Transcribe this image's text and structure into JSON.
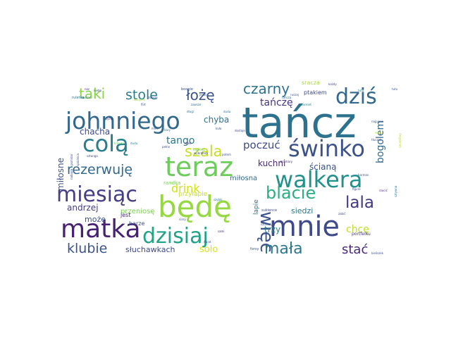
{
  "chart_data": {
    "type": "wordcloud",
    "colormap": "viridis",
    "background": "#ffffff",
    "title": "",
    "words": [
      {
        "text": "tańcz",
        "weight": 1.0,
        "color": "#2c728e"
      },
      {
        "text": "johnniego",
        "weight": 0.62,
        "color": "#31688e"
      },
      {
        "text": "mnie",
        "weight": 0.58,
        "color": "#3e4a89"
      },
      {
        "text": "matka",
        "weight": 0.55,
        "color": "#482173"
      },
      {
        "text": "będę",
        "weight": 0.55,
        "color": "#95d840"
      },
      {
        "text": "teraz",
        "weight": 0.5,
        "color": "#6ccd5a"
      },
      {
        "text": "walkera",
        "weight": 0.5,
        "color": "#21918c"
      },
      {
        "text": "świnko",
        "weight": 0.48,
        "color": "#3b528b"
      },
      {
        "text": "colą",
        "weight": 0.47,
        "color": "#287d8e"
      },
      {
        "text": "miesiąc",
        "weight": 0.45,
        "color": "#433e85"
      },
      {
        "text": "dziś",
        "weight": 0.42,
        "color": "#31688e"
      },
      {
        "text": "dzisiaj",
        "weight": 0.42,
        "color": "#20a386"
      },
      {
        "text": "więc",
        "weight": 0.38,
        "color": "#3b528b"
      },
      {
        "text": "blacie",
        "weight": 0.36,
        "color": "#29af7f"
      },
      {
        "text": "lala",
        "weight": 0.34,
        "color": "#453781"
      },
      {
        "text": "mała",
        "weight": 0.32,
        "color": "#2a788e"
      },
      {
        "text": "szala",
        "weight": 0.3,
        "color": "#c2df23"
      },
      {
        "text": "taki",
        "weight": 0.3,
        "color": "#86d549"
      },
      {
        "text": "łożę",
        "weight": 0.28,
        "color": "#3b528b"
      },
      {
        "text": "czarny",
        "weight": 0.28,
        "color": "#2c728e"
      },
      {
        "text": "stole",
        "weight": 0.26,
        "color": "#287d8e"
      },
      {
        "text": "rezerwuję",
        "weight": 0.26,
        "color": "#31688e"
      },
      {
        "text": "klubie",
        "weight": 0.26,
        "color": "#3b528b"
      },
      {
        "text": "stać",
        "weight": 0.26,
        "color": "#482878"
      },
      {
        "text": "drink",
        "weight": 0.22,
        "color": "#d0e11c"
      },
      {
        "text": "poczuć",
        "weight": 0.22,
        "color": "#3e4a89"
      },
      {
        "text": "bogolem",
        "weight": 0.2,
        "color": "#31688e"
      },
      {
        "text": "tańczę",
        "weight": 0.2,
        "color": "#463480"
      },
      {
        "text": "tango",
        "weight": 0.18,
        "color": "#2a788e"
      },
      {
        "text": "chcę",
        "weight": 0.18,
        "color": "#bddf26"
      },
      {
        "text": "solo",
        "weight": 0.18,
        "color": "#d8e219"
      },
      {
        "text": "miłosne",
        "weight": 0.16,
        "color": "#3b528b"
      },
      {
        "text": "chyba",
        "weight": 0.16,
        "color": "#2c728e"
      },
      {
        "text": "chacha",
        "weight": 0.15,
        "color": "#3e4a89"
      },
      {
        "text": "andrzej",
        "weight": 0.15,
        "color": "#433e85"
      },
      {
        "text": "kuchni",
        "weight": 0.15,
        "color": "#482878"
      },
      {
        "text": "ścianą",
        "weight": 0.15,
        "color": "#3b528b"
      },
      {
        "text": "trzy",
        "weight": 0.15,
        "color": "#26828e"
      },
      {
        "text": "siedzi",
        "weight": 0.14,
        "color": "#2a788e"
      },
      {
        "text": "słuchawkach",
        "weight": 0.14,
        "color": "#3e4a89"
      },
      {
        "text": "może",
        "weight": 0.13,
        "color": "#3b528b"
      },
      {
        "text": "przeniosę",
        "weight": 0.12,
        "color": "#7ad151"
      },
      {
        "text": "przyłapie",
        "weight": 0.12,
        "color": "#c8e020"
      },
      {
        "text": "miłosna",
        "weight": 0.12,
        "color": "#31688e"
      },
      {
        "text": "lapie",
        "weight": 0.11,
        "color": "#2c728e"
      },
      {
        "text": "randka",
        "weight": 0.09,
        "color": "#7ad151"
      },
      {
        "text": "ptakiem",
        "weight": 0.1,
        "color": "#3e4a89"
      },
      {
        "text": "sracza",
        "weight": 0.1,
        "color": "#a5db36"
      },
      {
        "text": "jest",
        "weight": 0.09,
        "color": "#482878"
      },
      {
        "text": "barze",
        "weight": 0.09,
        "color": "#3b528b"
      },
      {
        "text": "portfelku",
        "weight": 0.08,
        "color": "#463480"
      },
      {
        "text": "forsy",
        "weight": 0.07,
        "color": "#3b528b"
      },
      {
        "text": "sukience",
        "weight": 0.07,
        "color": "#3e4a89"
      },
      {
        "text": "ruletka",
        "weight": 0.06,
        "color": "#2c728e"
      },
      {
        "text": "boogie",
        "weight": 0.06,
        "color": "#3b528b"
      },
      {
        "text": "tutu",
        "weight": 0.06,
        "color": "#26828e"
      },
      {
        "text": "krówka",
        "weight": 0.06,
        "color": "#5ec962"
      },
      {
        "text": "jezus",
        "weight": 0.06,
        "color": "#3b528b"
      },
      {
        "text": "stole",
        "weight": 0.05,
        "color": "#482878"
      },
      {
        "text": "kuła",
        "weight": 0.05,
        "color": "#3b528b"
      },
      {
        "text": "dostaje",
        "weight": 0.05,
        "color": "#3e4a89"
      },
      {
        "text": "nagroda",
        "weight": 0.05,
        "color": "#5ec962"
      },
      {
        "text": "potem",
        "weight": 0.05,
        "color": "#3b528b"
      },
      {
        "text": "wybrałem",
        "weight": 0.05,
        "color": "#3e4a89"
      },
      {
        "text": "bary",
        "weight": 0.05,
        "color": "#2c728e"
      },
      {
        "text": "miec",
        "weight": 0.05,
        "color": "#3b528b"
      },
      {
        "text": "pełno",
        "weight": 0.05,
        "color": "#3e4a89"
      },
      {
        "text": "życie",
        "weight": 0.05,
        "color": "#482878"
      },
      {
        "text": "zawsze",
        "weight": 0.05,
        "color": "#2c728e"
      },
      {
        "text": "bankiet",
        "weight": 0.05,
        "color": "#26828e"
      },
      {
        "text": "najpierw",
        "weight": 0.05,
        "color": "#3b528b"
      },
      {
        "text": "wziąć",
        "weight": 0.05,
        "color": "#b5de2b"
      },
      {
        "text": "każdy",
        "weight": 0.05,
        "color": "#3e4a89"
      },
      {
        "text": "tłuczek",
        "weight": 0.05,
        "color": "#3b528b"
      },
      {
        "text": "dudu",
        "weight": 0.05,
        "color": "#2c728e"
      },
      {
        "text": "rzucić",
        "weight": 0.05,
        "color": "#482878"
      },
      {
        "text": "kieliszek",
        "weight": 0.05,
        "color": "#3b528b"
      },
      {
        "text": "zabić",
        "weight": 0.05,
        "color": "#3e4a89"
      },
      {
        "text": "pomidor",
        "weight": 0.05,
        "color": "#3b528b"
      },
      {
        "text": "ruszać",
        "weight": 0.05,
        "color": "#2c728e"
      },
      {
        "text": "dudu",
        "weight": 0.05,
        "color": "#26828e"
      },
      {
        "text": "flirt",
        "weight": 0.05,
        "color": "#3b528b"
      },
      {
        "text": "sami",
        "weight": 0.05,
        "color": "#482878"
      },
      {
        "text": "szuflady",
        "weight": 0.05,
        "color": "#3b528b"
      },
      {
        "text": "ciary",
        "weight": 0.05,
        "color": "#3e4a89"
      },
      {
        "text": "długi",
        "weight": 0.05,
        "color": "#2c728e"
      },
      {
        "text": "dobrze",
        "weight": 0.05,
        "color": "#3b528b"
      },
      {
        "text": "wziąłem",
        "weight": 0.05,
        "color": "#a0da39"
      },
      {
        "text": "sztanga",
        "weight": 0.05,
        "color": "#3e4a89"
      },
      {
        "text": "spódnica",
        "weight": 0.05,
        "color": "#3b528b"
      },
      {
        "text": "tańcza",
        "weight": 0.05,
        "color": "#2c728e"
      },
      {
        "text": "bramary",
        "weight": 0.05,
        "color": "#482878"
      },
      {
        "text": "ruszaj",
        "weight": 0.05,
        "color": "#3b528b"
      },
      {
        "text": "figure",
        "weight": 0.05,
        "color": "#3e4a89"
      },
      {
        "text": "barman",
        "weight": 0.05,
        "color": "#3b528b"
      },
      {
        "text": "sztywna",
        "weight": 0.05,
        "color": "#2c728e"
      },
      {
        "text": "szczęśliwy",
        "weight": 0.05,
        "color": "#b5de2b"
      },
      {
        "text": "nabiorę",
        "weight": 0.05,
        "color": "#3e4a89"
      },
      {
        "text": "tutu",
        "weight": 0.05,
        "color": "#3b528b"
      },
      {
        "text": "noc",
        "weight": 0.05,
        "color": "#482878"
      },
      {
        "text": "niebo",
        "weight": 0.05,
        "color": "#3b528b"
      },
      {
        "text": "szybki",
        "weight": 0.05,
        "color": "#2c728e"
      },
      {
        "text": "świat",
        "weight": 0.05,
        "color": "#3e4a89"
      }
    ]
  }
}
